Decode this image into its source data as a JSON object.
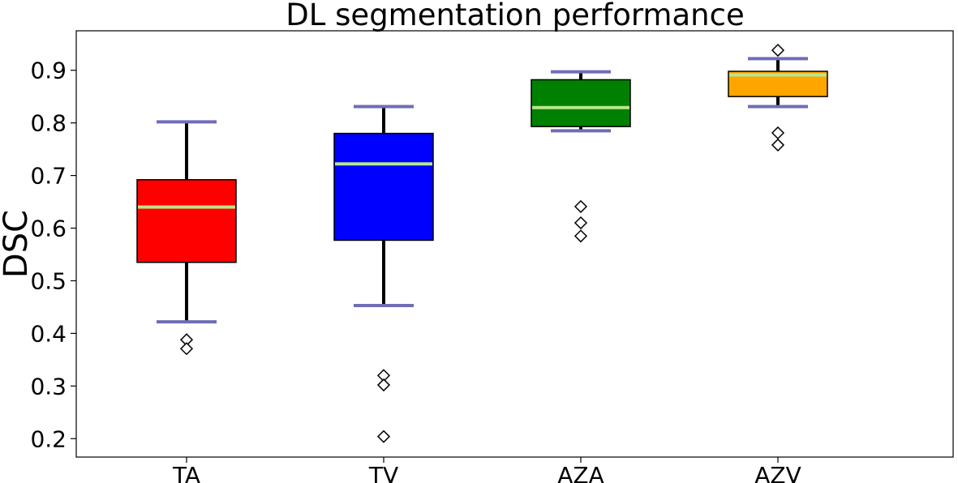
{
  "chart_data": {
    "type": "box",
    "title": "DL segmentation performance",
    "xlabel": "",
    "ylabel": "DSC",
    "ylim": [
      0.165,
      0.975
    ],
    "yticks": [
      "0.2",
      "0.3",
      "0.4",
      "0.5",
      "0.6",
      "0.7",
      "0.8",
      "0.9"
    ],
    "grid": false,
    "categories": [
      "TA",
      "TV",
      "AZA",
      "AZV"
    ],
    "series": [
      {
        "category": "TA",
        "whisker_low": 0.422,
        "q1": 0.535,
        "median": 0.64,
        "q3": 0.692,
        "whisker_high": 0.802,
        "outliers": [
          0.388,
          0.371
        ],
        "color": "#ff0000"
      },
      {
        "category": "TV",
        "whisker_low": 0.453,
        "q1": 0.577,
        "median": 0.722,
        "q3": 0.78,
        "whisker_high": 0.831,
        "outliers": [
          0.32,
          0.302,
          0.204
        ],
        "color": "#0000ff"
      },
      {
        "category": "AZA",
        "whisker_low": 0.785,
        "q1": 0.793,
        "median": 0.829,
        "q3": 0.882,
        "whisker_high": 0.897,
        "outliers": [
          0.641,
          0.61,
          0.585
        ],
        "color": "#008000"
      },
      {
        "category": "AZV",
        "whisker_low": 0.831,
        "q1": 0.85,
        "median": 0.891,
        "q3": 0.898,
        "whisker_high": 0.922,
        "outliers": [
          0.938,
          0.781,
          0.758
        ],
        "color": "#ffa500"
      }
    ],
    "median_color": "#b8e68a",
    "cap_color": "#6f6db6",
    "whisker_color": "#000000"
  }
}
